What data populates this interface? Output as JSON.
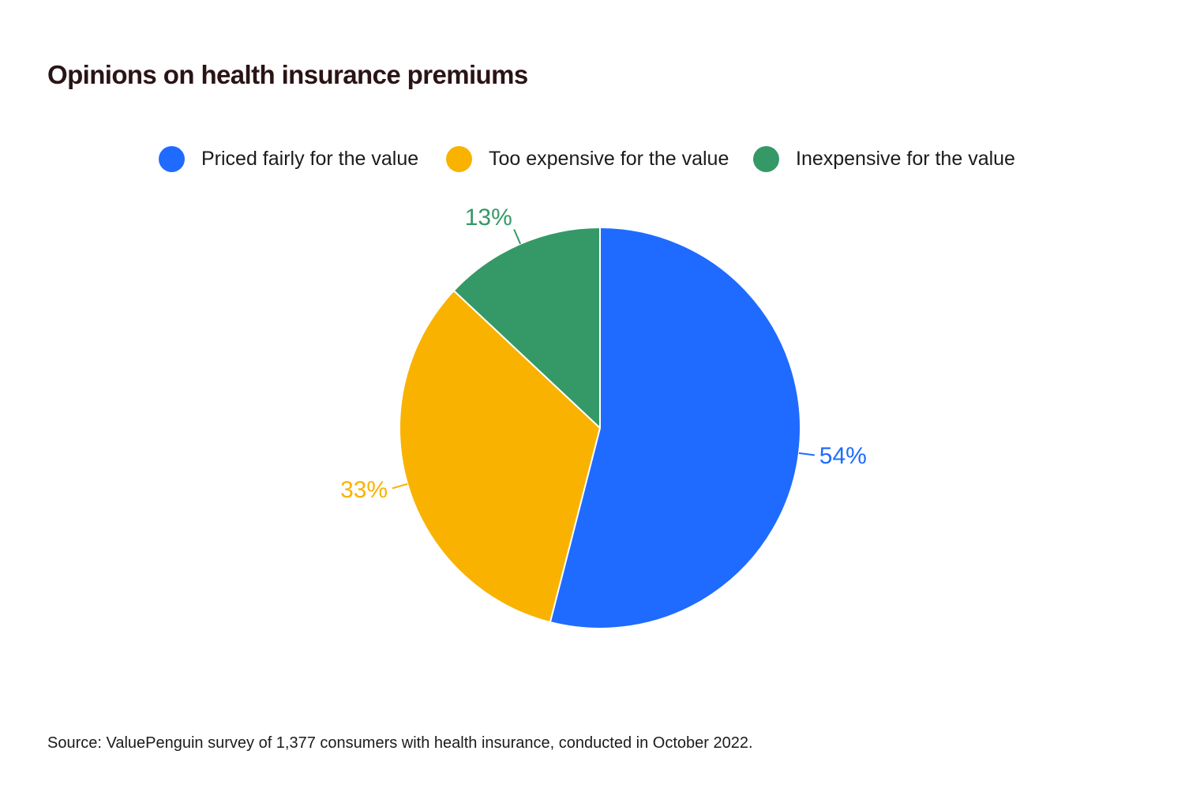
{
  "title": "Opinions on health insurance premiums",
  "source": "Source: ValuePenguin survey of 1,377 consumers with health insurance, conducted in October 2022.",
  "chart_data": {
    "type": "pie",
    "title": "Opinions on health insurance premiums",
    "legend_position": "top",
    "slices": [
      {
        "label": "Priced fairly for the value",
        "value": 54,
        "display": "54%",
        "color": "#1f6bff"
      },
      {
        "label": "Too expensive for the value",
        "value": 33,
        "display": "33%",
        "color": "#f9b200"
      },
      {
        "label": "Inexpensive for the value",
        "value": 13,
        "display": "13%",
        "color": "#349966"
      }
    ]
  }
}
